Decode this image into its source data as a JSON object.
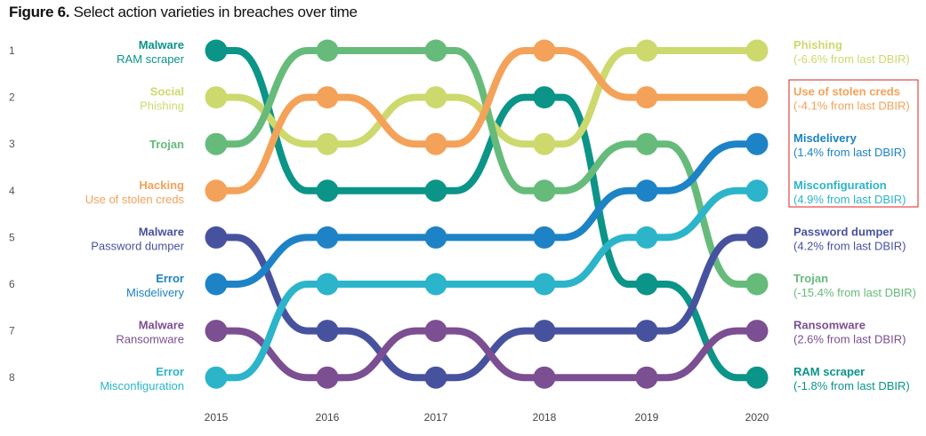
{
  "title": {
    "bold": "Figure 6.",
    "text": "Select action varieties in breaches over time"
  },
  "highlight_color": "#e0201c",
  "chart_data": {
    "type": "bump",
    "title": "Figure 6. Select action varieties in breaches over time",
    "x": [
      "2015",
      "2016",
      "2017",
      "2018",
      "2019",
      "2020"
    ],
    "ranks": [
      "1",
      "2",
      "3",
      "4",
      "5",
      "6",
      "7",
      "8"
    ],
    "ylim": [
      1,
      8
    ],
    "y_reversed": true,
    "series": [
      {
        "name": "RAM scraper",
        "category": "Malware",
        "left_sub": "RAM scraper",
        "color": "#0b9488",
        "ranks": [
          1,
          4,
          4,
          2,
          6,
          8
        ],
        "end_label": "RAM scraper",
        "end_change": "(-1.8% from last DBIR)",
        "highlighted": false
      },
      {
        "name": "Phishing",
        "category": "Social",
        "left_sub": "Phishing",
        "color": "#cdd96d",
        "ranks": [
          2,
          3,
          2,
          3,
          1,
          1
        ],
        "end_label": "Phishing",
        "end_change": "(-6.6% from last DBIR)",
        "highlighted": false
      },
      {
        "name": "Trojan",
        "category": "Trojan",
        "left_sub": "",
        "color": "#66bb7b",
        "ranks": [
          3,
          1,
          1,
          4,
          3,
          6
        ],
        "end_label": "Trojan",
        "end_change": "(-15.4% from last DBIR)",
        "highlighted": false
      },
      {
        "name": "Use of stolen creds",
        "category": "Hacking",
        "left_sub": "Use of stolen creds",
        "color": "#f4a259",
        "ranks": [
          4,
          2,
          3,
          1,
          2,
          2
        ],
        "end_label": "Use of stolen creds",
        "end_change": "(-4.1% from last DBIR)",
        "highlighted": true
      },
      {
        "name": "Password dumper",
        "category": "Malware",
        "left_sub": "Password dumper",
        "color": "#47529f",
        "ranks": [
          5,
          7,
          8,
          7,
          7,
          5
        ],
        "end_label": "Password dumper",
        "end_change": "(4.2% from last DBIR)",
        "highlighted": false
      },
      {
        "name": "Misdelivery",
        "category": "Error",
        "left_sub": "Misdelivery",
        "color": "#1d83c6",
        "ranks": [
          6,
          5,
          5,
          5,
          4,
          3
        ],
        "end_label": "Misdelivery",
        "end_change": "(1.4% from last DBIR)",
        "highlighted": true
      },
      {
        "name": "Ransomware",
        "category": "Malware",
        "left_sub": "Ransomware",
        "color": "#7c4e92",
        "ranks": [
          7,
          8,
          7,
          8,
          8,
          7
        ],
        "end_label": "Ransomware",
        "end_change": "(2.6% from last DBIR)",
        "highlighted": false
      },
      {
        "name": "Misconfiguration",
        "category": "Error",
        "left_sub": "Misconfiguration",
        "color": "#2cb4cb",
        "ranks": [
          8,
          6,
          6,
          6,
          5,
          4
        ],
        "end_label": "Misconfiguration",
        "end_change": "(4.9% from last DBIR)",
        "highlighted": true
      }
    ]
  }
}
